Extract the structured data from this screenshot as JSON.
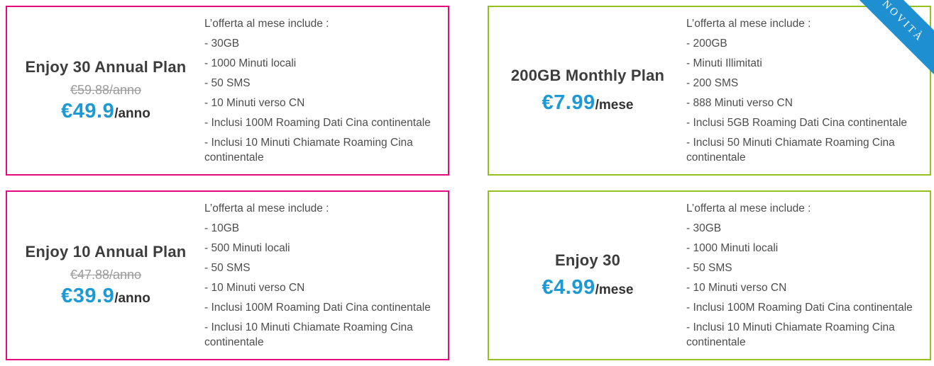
{
  "colors": {
    "annual_border": "#e5097f",
    "monthly_border": "#94c11d",
    "price_blue": "#1d9ad6",
    "ribbon_blue": "#1e8fd0",
    "title_text": "#3d3d3d",
    "body_text": "#4d4d4d",
    "old_price_gray": "#9b9b9b"
  },
  "ribbon": {
    "label": "NOVITÀ"
  },
  "cards": [
    {
      "name": "Enjoy 30 Annual Plan",
      "old_price": "€59.88/anno",
      "price": "€49.9",
      "price_suffix": "/anno",
      "features_header": "L’offerta al mese include :",
      "features": [
        "- 30GB",
        "- 1000 Minuti locali",
        "- 50 SMS",
        "- 10 Minuti verso CN",
        "- Inclusi 100M Roaming Dati Cina continentale",
        "- Inclusi 10 Minuti Chiamate Roaming Cina continentale"
      ]
    },
    {
      "name": "200GB Monthly Plan",
      "price": "€7.99",
      "price_suffix": "/mese",
      "features_header": "L’offerta al mese include :",
      "features": [
        "- 200GB",
        "- Minuti Illimitati",
        "- 200 SMS",
        "- 888 Minuti verso CN",
        "- Inclusi 5GB Roaming Dati Cina continentale",
        "- Inclusi 50 Minuti Chiamate Roaming Cina continentale"
      ]
    },
    {
      "name": "Enjoy 10 Annual Plan",
      "old_price": "€47.88/anno",
      "price": "€39.9",
      "price_suffix": "/anno",
      "features_header": "L’offerta al mese include :",
      "features": [
        "- 10GB",
        "- 500 Minuti locali",
        "- 50 SMS",
        "- 10 Minuti verso CN",
        "- Inclusi 100M Roaming Dati Cina continentale",
        "- Inclusi 10 Minuti Chiamate Roaming Cina continentale"
      ]
    },
    {
      "name": "Enjoy 30",
      "price": "€4.99",
      "price_suffix": "/mese",
      "features_header": "L’offerta al mese include :",
      "features": [
        "- 30GB",
        "- 1000 Minuti locali",
        "- 50 SMS",
        "- 10 Minuti verso CN",
        "- Inclusi 100M Roaming Dati Cina continentale",
        "- Inclusi 10 Minuti Chiamate Roaming Cina continentale"
      ]
    }
  ]
}
